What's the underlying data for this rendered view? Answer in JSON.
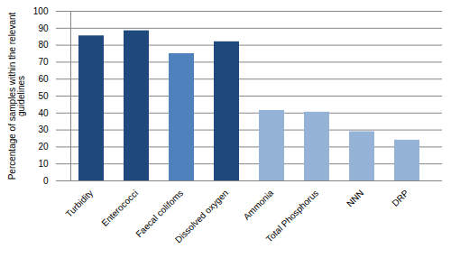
{
  "chart_data": {
    "type": "bar",
    "y_label": "Percentage of samples within the relevant guidelines",
    "categories": [
      "Turbidity",
      "Enterococci",
      "Faecal colifoms",
      "Dissolved oxygen",
      "Ammonia",
      "Total Phosphorus",
      "NNN",
      "DRP"
    ],
    "values": [
      85.5,
      88.5,
      75,
      82,
      41.5,
      40.5,
      29,
      24
    ],
    "colors": [
      "#1f497d",
      "#1f497d",
      "#4f81bd",
      "#1f497d",
      "#95b3d7",
      "#95b3d7",
      "#95b3d7",
      "#95b3d7"
    ],
    "ylim": [
      0,
      100
    ],
    "yticks": [
      0,
      10,
      20,
      30,
      40,
      50,
      60,
      70,
      80,
      90,
      100
    ],
    "grid": true
  }
}
